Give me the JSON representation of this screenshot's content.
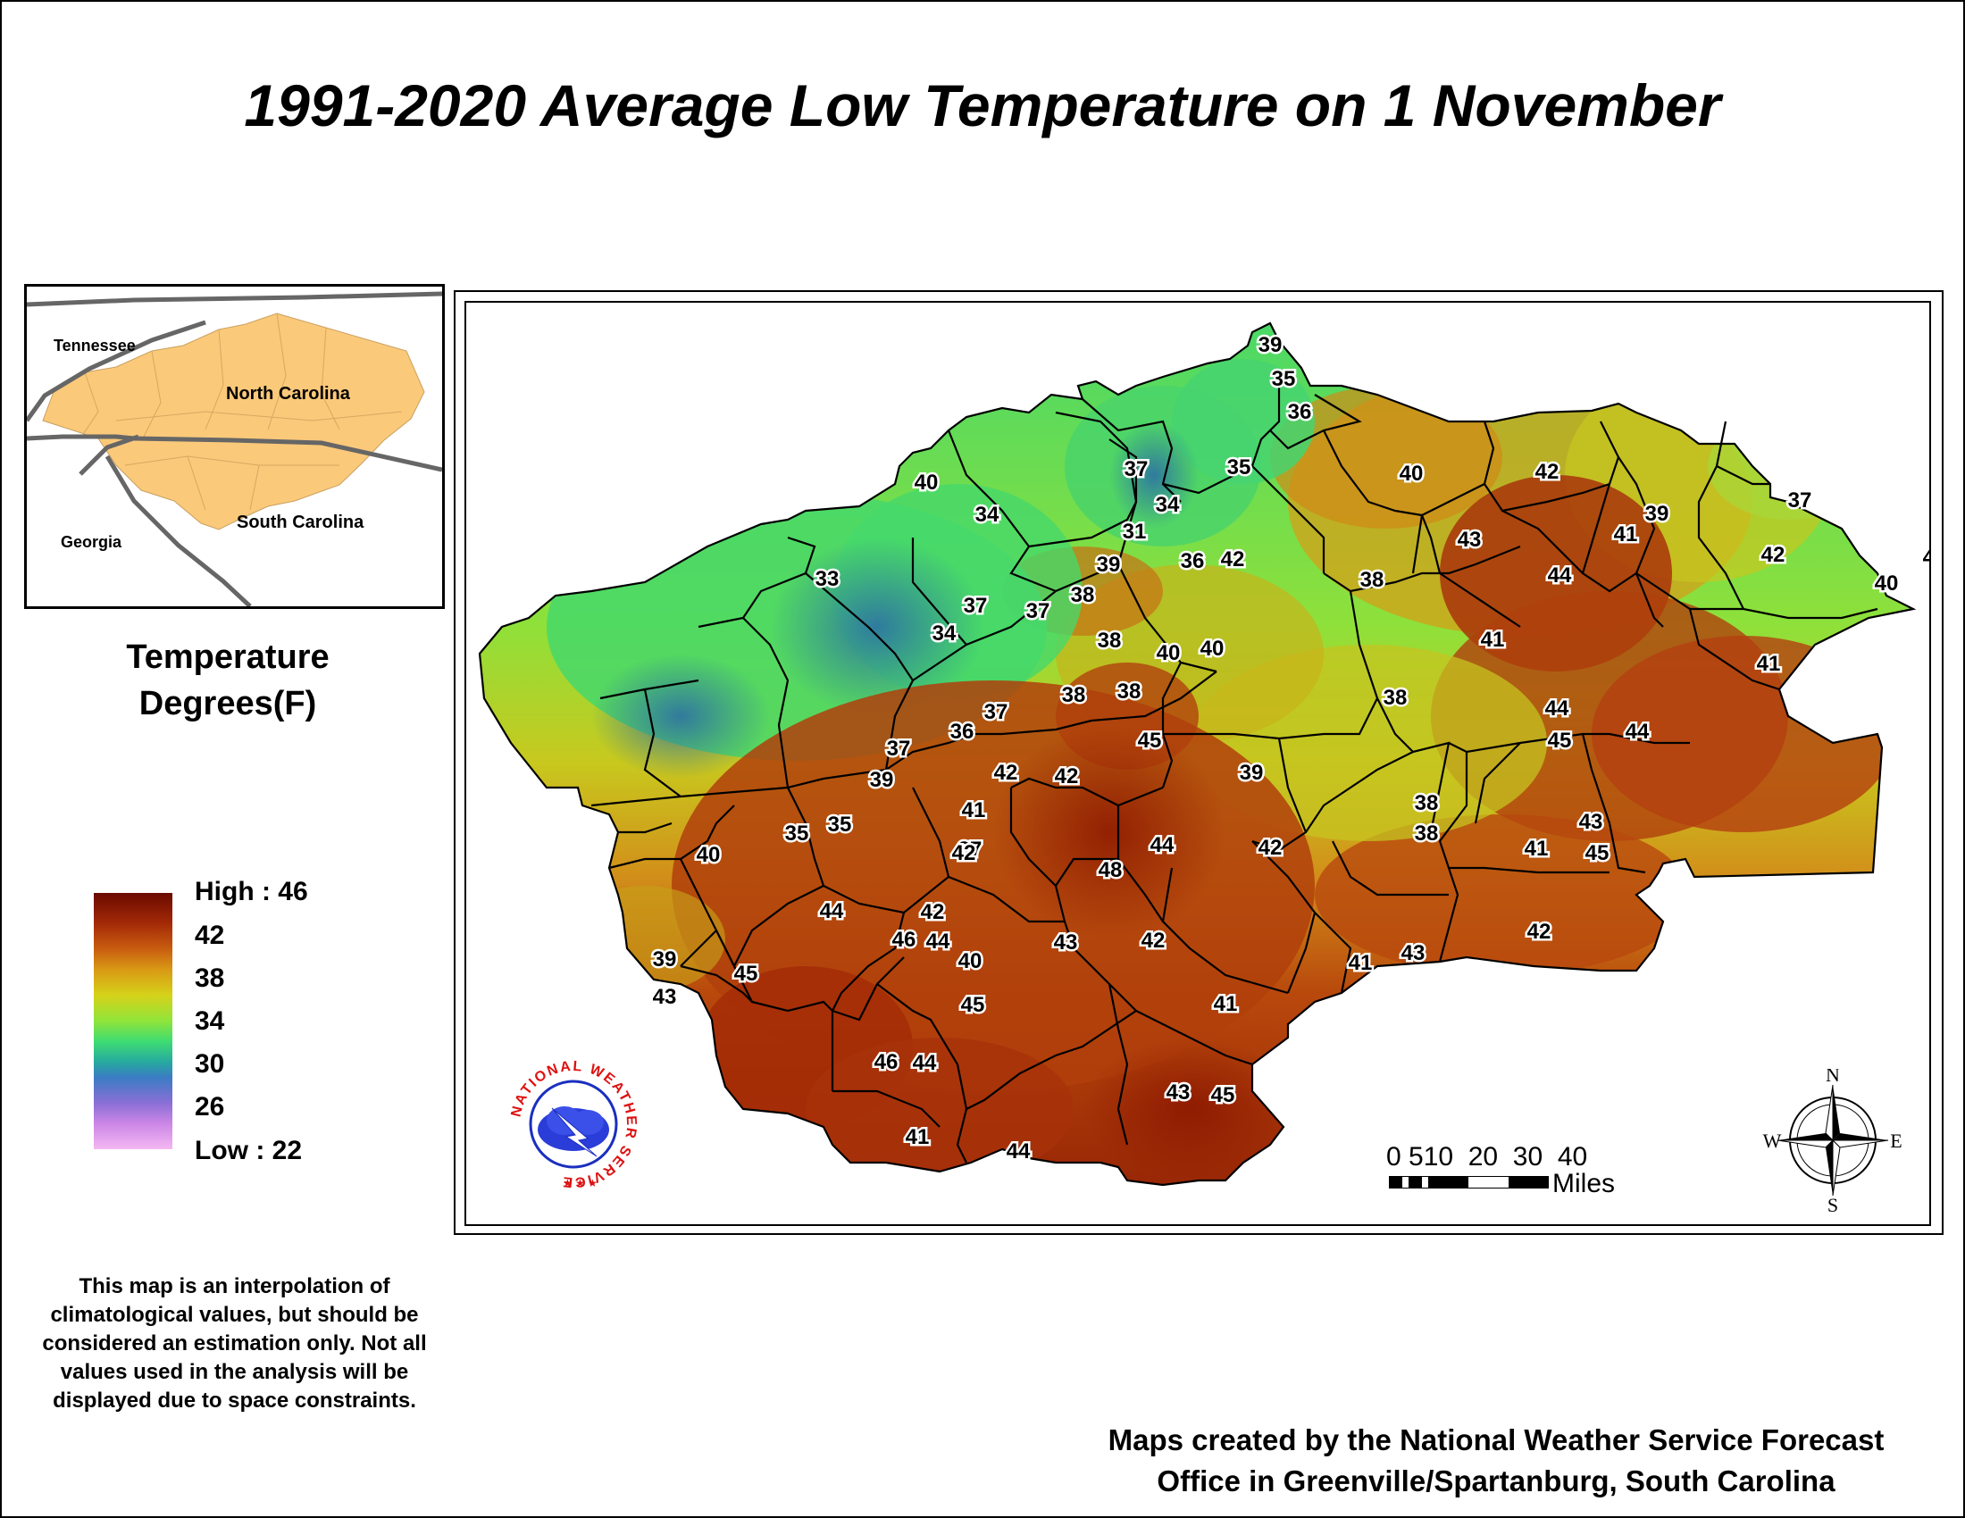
{
  "title": "1991-2020 Average Low Temperature on 1 November",
  "inset": {
    "states": [
      "Tennessee",
      "North Carolina",
      "South Carolina",
      "Georgia"
    ]
  },
  "legend": {
    "title_line1": "Temperature",
    "title_line2": "Degrees(F)",
    "high_label": "High : 46",
    "low_label": "Low : 22",
    "ticks": [
      "42",
      "38",
      "34",
      "30",
      "26"
    ]
  },
  "note": "This map is an interpolation of climatological values, but should be considered an estimation only. Not all values used in the analysis will be displayed due to space constraints.",
  "credit_line1": "Maps created by the National Weather Service Forecast",
  "credit_line2": "Office in Greenville/Spartanburg, South Carolina",
  "scalebar": {
    "numbers": "0 510  20  30  40",
    "unit": "Miles"
  },
  "compass": {
    "n": "N",
    "s": "S",
    "e": "E",
    "w": "W"
  },
  "logo": {
    "text": "NATIONAL WEATHER SERVICE"
  },
  "station_values": [
    "39",
    "35",
    "36",
    "40",
    "42",
    "39",
    "37",
    "34",
    "31",
    "35",
    "40",
    "34",
    "37",
    "41",
    "33",
    "39",
    "36",
    "42",
    "43",
    "44",
    "40",
    "41",
    "38",
    "42",
    "41",
    "41",
    "38",
    "37",
    "34",
    "37",
    "40",
    "38",
    "38",
    "40",
    "38",
    "36",
    "37",
    "38",
    "44",
    "44",
    "45",
    "37",
    "45",
    "39",
    "38",
    "42",
    "35",
    "42",
    "41",
    "39",
    "43",
    "37",
    "35",
    "41",
    "45",
    "38",
    "40",
    "42",
    "44",
    "48",
    "42",
    "44",
    "42",
    "41",
    "43",
    "42",
    "46",
    "44",
    "40",
    "45",
    "42",
    "43",
    "41",
    "39",
    "43",
    "45",
    "46",
    "44",
    "43",
    "45",
    "41",
    "44"
  ]
}
